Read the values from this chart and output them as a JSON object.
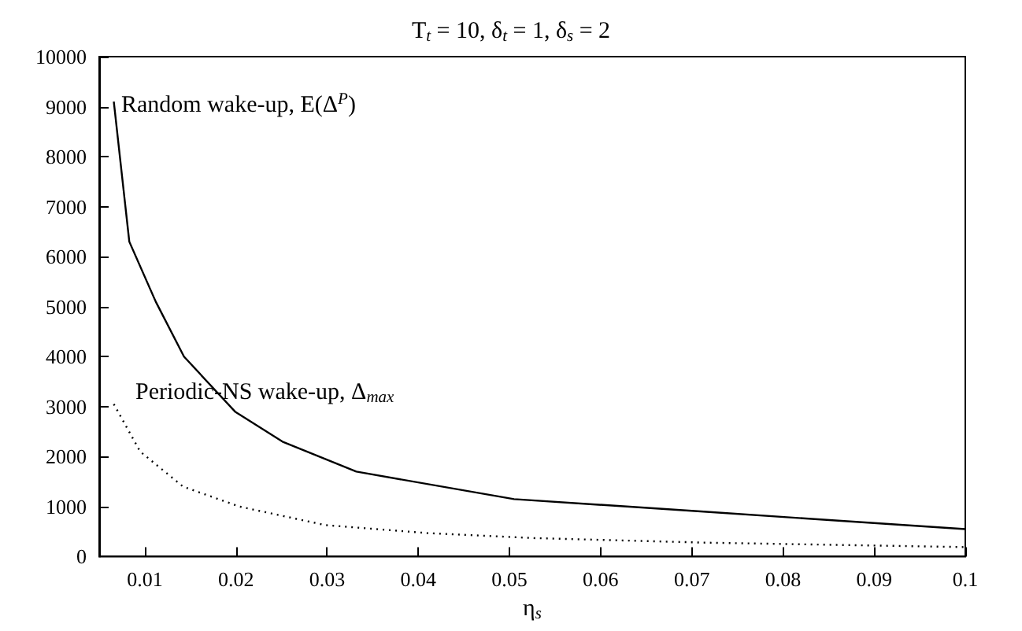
{
  "chart_data": {
    "type": "line",
    "title": "T$_{t}$ = 10, δ$_{t}$ = 1, δ$_{s}$ = 2",
    "xlabel": "η$_{s}$",
    "xlim": [
      0.005,
      0.1
    ],
    "xticks": [
      0.01,
      0.02,
      0.03,
      0.04,
      0.05,
      0.06,
      0.07,
      0.08,
      0.09,
      0.1
    ],
    "ylim": [
      0,
      10000
    ],
    "yticks": [
      0,
      1000,
      2000,
      3000,
      4000,
      5000,
      6000,
      7000,
      8000,
      9000,
      10000
    ],
    "grid": false,
    "legend": false,
    "marker": "none",
    "series": [
      {
        "name": "Random wake-up, E(Δ$^{P}$)",
        "color": "#000000",
        "line_style": "solid",
        "x": [
          0.0066,
          0.0083,
          0.0112,
          0.0143,
          0.0199,
          0.0251,
          0.0332,
          0.0505,
          0.0713,
          0.1
        ],
        "values": [
          9100,
          6300,
          5100,
          4000,
          2900,
          2300,
          1700,
          1150,
          900,
          550
        ]
      },
      {
        "name": "Periodic-NS wake-up, Δ$_{max}$",
        "color": "#000000",
        "line_style": "dotted",
        "x": [
          0.0066,
          0.0095,
          0.0142,
          0.0204,
          0.0298,
          0.041,
          0.0528,
          0.0713,
          0.1
        ],
        "values": [
          3050,
          2100,
          1400,
          1000,
          630,
          470,
          370,
          280,
          190
        ]
      }
    ]
  }
}
